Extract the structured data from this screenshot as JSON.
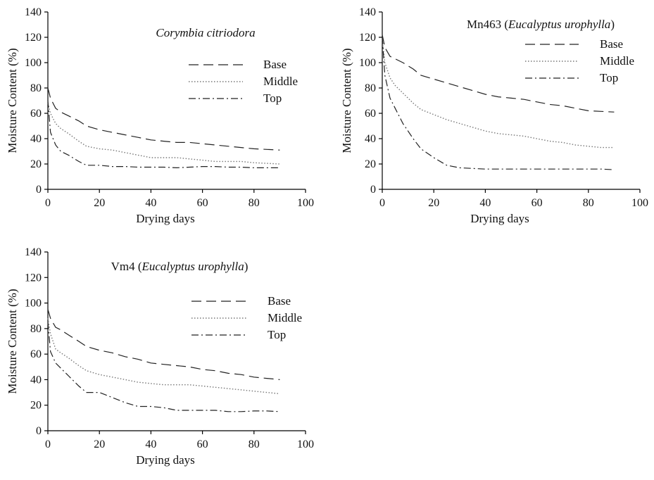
{
  "chart_data": [
    {
      "type": "line",
      "title": "Corymbia citriodora",
      "title_parts": [
        {
          "text": "Corymbia citriodora",
          "italic": true
        }
      ],
      "xlabel": "Drying days",
      "ylabel": "Moisture Content (%)",
      "xlim": [
        0,
        100
      ],
      "ylim": [
        0,
        140
      ],
      "xticks": [
        0,
        20,
        40,
        60,
        80,
        100
      ],
      "yticks": [
        0,
        20,
        40,
        60,
        80,
        100,
        120,
        140
      ],
      "grid": false,
      "legend_position": "top-right",
      "series": [
        {
          "name": "Base",
          "style": "long-dash",
          "x": [
            0,
            1,
            3,
            5,
            8,
            12,
            15,
            20,
            25,
            30,
            35,
            40,
            45,
            50,
            55,
            60,
            65,
            70,
            75,
            80,
            85,
            90
          ],
          "y": [
            80,
            72,
            64,
            61,
            58,
            54,
            50,
            47,
            45,
            43,
            41,
            39,
            38,
            37,
            37,
            36,
            35,
            34,
            33,
            32,
            31.5,
            31
          ]
        },
        {
          "name": "Middle",
          "style": "dotted",
          "x": [
            0,
            1,
            3,
            5,
            8,
            12,
            15,
            20,
            25,
            30,
            35,
            40,
            45,
            50,
            55,
            60,
            65,
            70,
            75,
            80,
            85,
            90
          ],
          "y": [
            68,
            60,
            52,
            48,
            44,
            38,
            34,
            32,
            31,
            29,
            27,
            25,
            25,
            25,
            24,
            23,
            22,
            22,
            22,
            21,
            20.5,
            20
          ]
        },
        {
          "name": "Top",
          "style": "dash-dot",
          "x": [
            0,
            1,
            3,
            5,
            8,
            12,
            15,
            20,
            25,
            30,
            35,
            40,
            45,
            50,
            55,
            60,
            65,
            70,
            75,
            80,
            85,
            90
          ],
          "y": [
            70,
            45,
            35,
            30,
            27,
            22,
            19,
            19,
            18,
            18,
            17.5,
            17.5,
            17.5,
            17,
            17.5,
            18,
            18,
            17.5,
            17.5,
            17,
            17,
            17
          ]
        }
      ]
    },
    {
      "type": "line",
      "title": "Mn463 (Eucalyptus urophylla)",
      "title_parts": [
        {
          "text": "Mn463 (",
          "italic": false
        },
        {
          "text": "Eucalyptus urophylla",
          "italic": true
        },
        {
          "text": ")",
          "italic": false
        }
      ],
      "xlabel": "Drying days",
      "ylabel": "Moisture Content (%)",
      "xlim": [
        0,
        100
      ],
      "ylim": [
        0,
        140
      ],
      "xticks": [
        0,
        20,
        40,
        60,
        80,
        100
      ],
      "yticks": [
        0,
        20,
        40,
        60,
        80,
        100,
        120,
        140
      ],
      "grid": false,
      "legend_position": "top-right",
      "series": [
        {
          "name": "Base",
          "style": "long-dash",
          "x": [
            0,
            1,
            3,
            5,
            8,
            12,
            15,
            20,
            25,
            30,
            35,
            40,
            45,
            50,
            55,
            60,
            65,
            70,
            75,
            80,
            85,
            90
          ],
          "y": [
            122,
            112,
            105,
            103,
            100,
            95,
            90,
            87,
            84,
            81,
            78,
            75,
            73,
            72,
            71,
            69,
            67,
            66,
            64,
            62,
            61.5,
            61
          ]
        },
        {
          "name": "Middle",
          "style": "dotted",
          "x": [
            0,
            1,
            3,
            5,
            8,
            12,
            15,
            20,
            25,
            30,
            35,
            40,
            45,
            50,
            55,
            60,
            65,
            70,
            75,
            80,
            85,
            90
          ],
          "y": [
            118,
            100,
            88,
            82,
            76,
            68,
            63,
            59,
            55,
            52,
            49,
            46,
            44,
            43,
            42,
            40,
            38,
            37,
            35,
            34,
            33,
            33
          ]
        },
        {
          "name": "Top",
          "style": "dash-dot",
          "x": [
            0,
            1,
            3,
            5,
            8,
            12,
            15,
            20,
            25,
            30,
            35,
            40,
            45,
            50,
            55,
            60,
            65,
            70,
            75,
            80,
            85,
            90
          ],
          "y": [
            120,
            90,
            72,
            64,
            52,
            40,
            32,
            25,
            19,
            17,
            16.5,
            16,
            16,
            16,
            16,
            16,
            16,
            16,
            16,
            16,
            16,
            15.5
          ]
        }
      ]
    },
    {
      "type": "line",
      "title": "Vm4 (Eucalyptus urophylla)",
      "title_parts": [
        {
          "text": "Vm4 (",
          "italic": false
        },
        {
          "text": "Eucalyptus urophylla",
          "italic": true
        },
        {
          "text": ")",
          "italic": false
        }
      ],
      "xlabel": "Drying days",
      "ylabel": "Moisture Content (%)",
      "xlim": [
        0,
        100
      ],
      "ylim": [
        0,
        140
      ],
      "xticks": [
        0,
        20,
        40,
        60,
        80,
        100
      ],
      "yticks": [
        0,
        20,
        40,
        60,
        80,
        100,
        120,
        140
      ],
      "grid": false,
      "legend_position": "top-right",
      "series": [
        {
          "name": "Base",
          "style": "long-dash",
          "x": [
            0,
            1,
            3,
            5,
            8,
            12,
            15,
            20,
            25,
            30,
            35,
            40,
            45,
            50,
            55,
            60,
            65,
            70,
            75,
            80,
            85,
            90
          ],
          "y": [
            95,
            88,
            81,
            79,
            75,
            70,
            66,
            63,
            61,
            58,
            56,
            53,
            52,
            51,
            50,
            48,
            47,
            45,
            44,
            42,
            41,
            40
          ]
        },
        {
          "name": "Middle",
          "style": "dotted",
          "x": [
            0,
            1,
            3,
            5,
            8,
            12,
            15,
            20,
            25,
            30,
            35,
            40,
            45,
            50,
            55,
            60,
            65,
            70,
            75,
            80,
            85,
            90
          ],
          "y": [
            88,
            76,
            64,
            61,
            57,
            51,
            47,
            44,
            42,
            40,
            38,
            37,
            36,
            36,
            36,
            35,
            34,
            33,
            32,
            31,
            30,
            29
          ]
        },
        {
          "name": "Top",
          "style": "dash-dot",
          "x": [
            0,
            1,
            3,
            5,
            8,
            12,
            15,
            20,
            25,
            30,
            35,
            40,
            45,
            50,
            55,
            60,
            65,
            70,
            75,
            80,
            85,
            90
          ],
          "y": [
            85,
            62,
            53,
            49,
            43,
            35,
            30,
            30,
            26,
            22,
            19,
            19,
            18,
            16,
            16,
            16,
            16,
            15,
            15,
            15.5,
            15.5,
            15
          ]
        }
      ]
    }
  ]
}
